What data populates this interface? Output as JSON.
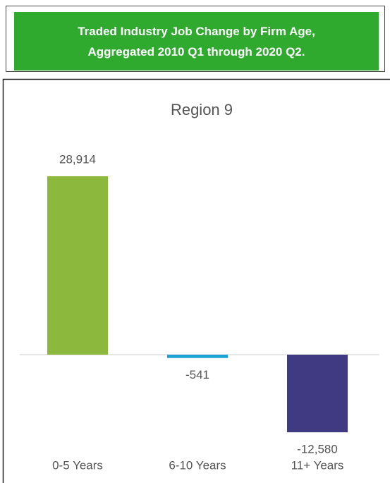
{
  "header": {
    "title": "Traded Industry Job Change by Firm Age, Aggregated 2010 Q1 through 2020 Q2."
  },
  "chart_data": {
    "type": "bar",
    "title": "Region 9",
    "categories": [
      "0-5 Years",
      "6-10 Years",
      "11+ Years"
    ],
    "values": [
      28914,
      -541,
      -12580
    ],
    "value_labels": [
      "28,914",
      "-541",
      "-12,580"
    ],
    "colors": [
      "#8db83e",
      "#1ba1d6",
      "#3f3a82"
    ]
  }
}
